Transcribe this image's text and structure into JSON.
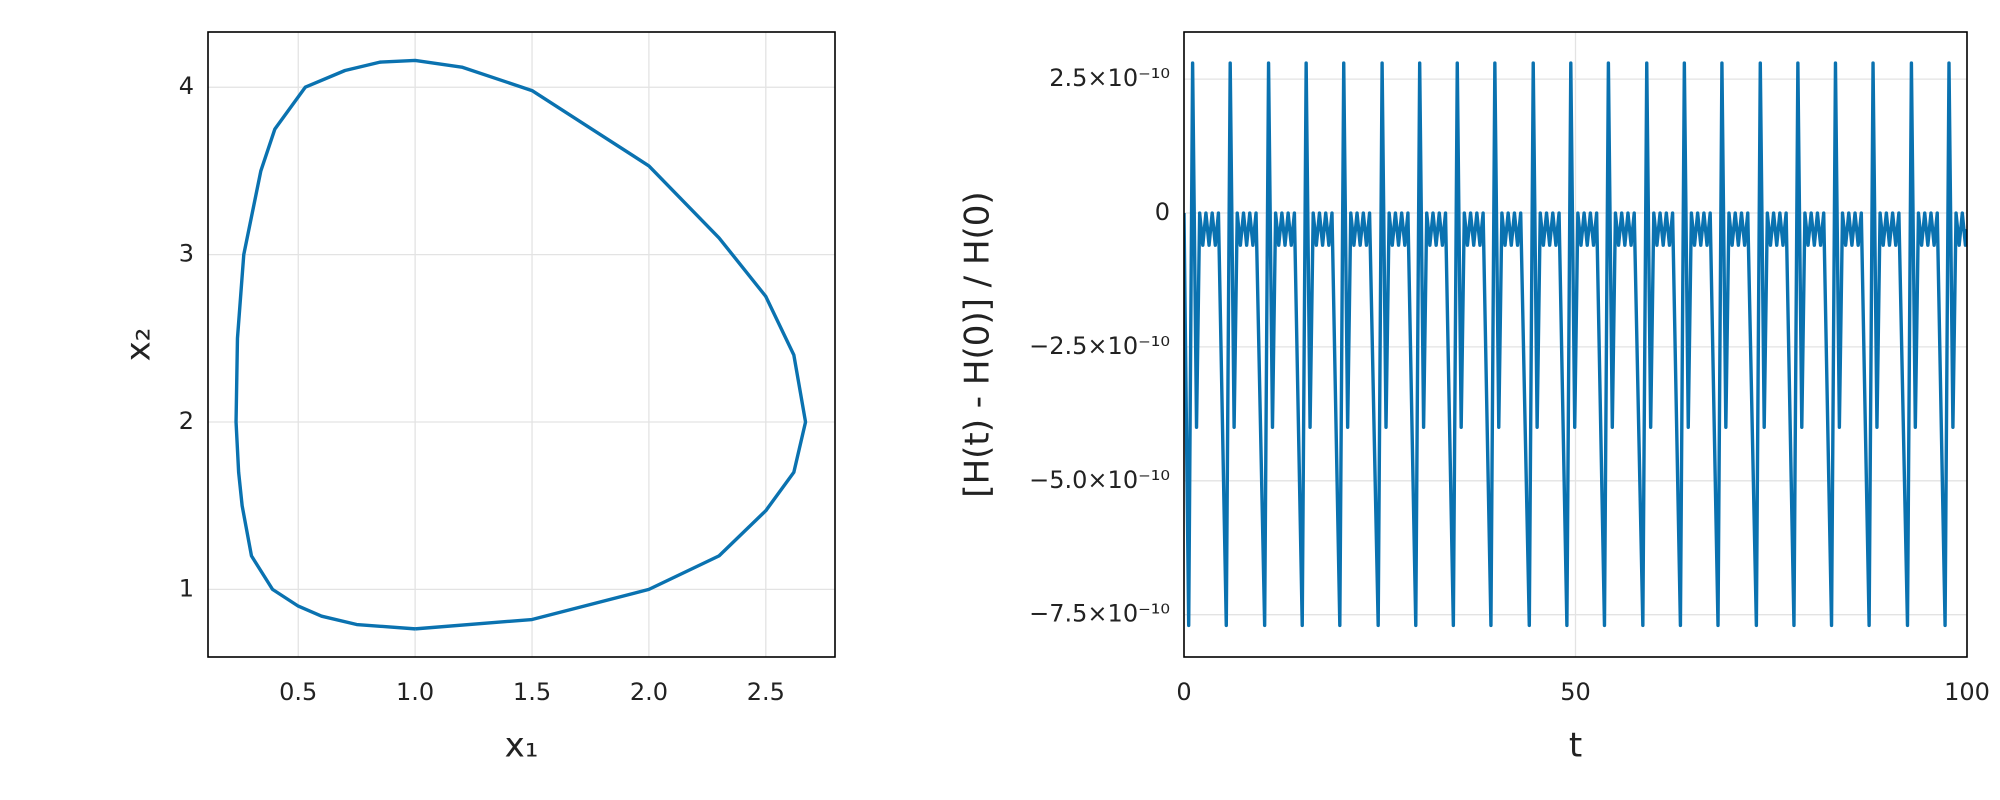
{
  "chart_data": [
    {
      "type": "line",
      "xlabel": "x₁",
      "ylabel": "x₂",
      "color": "#0a72b0",
      "grid": true,
      "x": [
        1.0,
        1.5,
        2.0,
        2.3,
        2.5,
        2.62,
        2.67,
        2.62,
        2.5,
        2.3,
        2.0,
        1.5,
        1.2,
        1.0,
        0.85,
        0.7,
        0.53,
        0.4,
        0.34,
        0.267,
        0.24,
        0.234,
        0.245,
        0.26,
        0.3,
        0.39,
        0.5,
        0.6,
        0.75,
        1.0
      ],
      "values": [
        0.764,
        0.82,
        1.0,
        1.2,
        1.47,
        1.7,
        2.0,
        2.4,
        2.75,
        3.1,
        3.53,
        3.98,
        4.12,
        4.16,
        4.15,
        4.1,
        4.0,
        3.75,
        3.5,
        3.0,
        2.5,
        2.0,
        1.7,
        1.5,
        1.2,
        1.0,
        0.9,
        0.84,
        0.79,
        0.764
      ],
      "xlim": [
        0.114,
        2.796
      ],
      "ylim": [
        0.596,
        4.33
      ],
      "xticks": [
        0.5,
        {
          "value": 1.0,
          "label": "1.0"
        },
        1.5,
        {
          "value": 2.0,
          "label": "2.0"
        },
        2.5
      ],
      "yticks": [
        1,
        2,
        3,
        4
      ]
    },
    {
      "type": "line",
      "xlabel": "t",
      "ylabel": "[H(t) - H(0)] / H(0)",
      "color": "#0a72b0",
      "grid": true,
      "x": [
        0,
        0.6,
        1.1,
        1.6,
        2.0,
        2.4,
        2.8,
        3.2,
        3.6,
        4.0,
        4.4,
        5.4,
        5.9,
        6.4,
        6.8,
        7.2,
        7.6,
        8.0,
        8.4,
        8.8,
        9.2,
        10.3,
        10.8,
        11.3,
        11.7,
        12.1,
        12.5,
        12.9,
        13.3,
        13.7,
        14.1,
        15.1,
        15.6,
        16.1,
        16.5,
        16.9,
        17.3,
        17.7,
        18.1,
        18.5,
        18.9,
        19.9,
        20.4,
        20.9,
        21.3,
        21.7,
        22.1,
        22.5,
        22.9,
        23.3,
        23.7,
        24.8,
        25.3,
        25.8,
        26.2,
        26.6,
        27.0,
        27.4,
        27.8,
        28.2,
        28.6,
        29.6,
        30.1,
        30.6,
        31.0,
        31.4,
        31.8,
        32.2,
        32.6,
        33.0,
        33.4,
        34.4,
        34.9,
        35.4,
        35.8,
        36.2,
        36.6,
        37.0,
        37.4,
        37.8,
        38.2,
        39.2,
        39.7,
        40.2,
        40.6,
        41.0,
        41.4,
        41.8,
        42.2,
        42.6,
        43.0,
        44.1,
        44.6,
        45.1,
        45.5,
        45.9,
        46.3,
        46.7,
        47.1,
        47.5,
        47.9,
        48.9,
        49.4,
        49.9,
        50.3,
        50.7,
        51.1,
        51.5,
        51.9,
        52.3,
        52.7,
        53.7,
        54.2,
        54.7,
        55.1,
        55.5,
        55.9,
        56.3,
        56.7,
        57.1,
        57.5,
        58.6,
        59.1,
        59.6,
        60.0,
        60.4,
        60.8,
        61.2,
        61.6,
        62.0,
        62.4,
        63.4,
        63.9,
        64.4,
        64.8,
        65.2,
        65.6,
        66.0,
        66.4,
        66.8,
        67.2,
        68.2,
        68.7,
        69.2,
        69.6,
        70.0,
        70.4,
        70.8,
        71.2,
        71.6,
        72.0,
        73.1,
        73.6,
        74.1,
        74.5,
        74.9,
        75.3,
        75.7,
        76.1,
        76.5,
        76.9,
        77.9,
        78.4,
        78.9,
        79.3,
        79.7,
        80.1,
        80.5,
        80.9,
        81.3,
        81.7,
        82.7,
        83.2,
        83.7,
        84.1,
        84.5,
        84.9,
        85.3,
        85.7,
        86.1,
        86.5,
        87.5,
        88.0,
        88.5,
        88.9,
        89.3,
        89.7,
        90.1,
        90.5,
        90.9,
        91.3,
        92.4,
        92.9,
        93.4,
        93.8,
        94.2,
        94.6,
        95.0,
        95.4,
        95.8,
        96.2,
        97.2,
        97.7,
        98.2,
        98.6,
        99.0,
        99.4,
        99.8,
        100
      ],
      "values": [
        0,
        -7.7e-10,
        2.8e-10,
        -4e-10,
        0,
        -6e-11,
        0,
        -6e-11,
        0,
        -6e-11,
        0,
        -7.7e-10,
        2.8e-10,
        -4e-10,
        0,
        -6e-11,
        0,
        -6e-11,
        0,
        -6e-11,
        0,
        -7.7e-10,
        2.8e-10,
        -4e-10,
        0,
        -6e-11,
        0,
        -6e-11,
        0,
        -6e-11,
        0,
        -7.7e-10,
        2.8e-10,
        -4e-10,
        0,
        -6e-11,
        0,
        -6e-11,
        0,
        -6e-11,
        0,
        -7.7e-10,
        2.8e-10,
        -4e-10,
        0,
        -6e-11,
        0,
        -6e-11,
        0,
        -6e-11,
        0,
        -7.7e-10,
        2.8e-10,
        -4e-10,
        0,
        -6e-11,
        0,
        -6e-11,
        0,
        -6e-11,
        0,
        -7.7e-10,
        2.8e-10,
        -4e-10,
        0,
        -6e-11,
        0,
        -6e-11,
        0,
        -6e-11,
        0,
        -7.7e-10,
        2.8e-10,
        -4e-10,
        0,
        -6e-11,
        0,
        -6e-11,
        0,
        -6e-11,
        0,
        -7.7e-10,
        2.8e-10,
        -4e-10,
        0,
        -6e-11,
        0,
        -6e-11,
        0,
        -6e-11,
        0,
        -7.7e-10,
        2.8e-10,
        -4e-10,
        0,
        -6e-11,
        0,
        -6e-11,
        0,
        -6e-11,
        0,
        -7.7e-10,
        2.8e-10,
        -4e-10,
        0,
        -6e-11,
        0,
        -6e-11,
        0,
        -6e-11,
        0,
        -7.7e-10,
        2.8e-10,
        -4e-10,
        0,
        -6e-11,
        0,
        -6e-11,
        0,
        -6e-11,
        0,
        -7.7e-10,
        2.8e-10,
        -4e-10,
        0,
        -6e-11,
        0,
        -6e-11,
        0,
        -6e-11,
        0,
        -7.7e-10,
        2.8e-10,
        -4e-10,
        0,
        -6e-11,
        0,
        -6e-11,
        0,
        -6e-11,
        0,
        -7.7e-10,
        2.8e-10,
        -4e-10,
        0,
        -6e-11,
        0,
        -6e-11,
        0,
        -6e-11,
        0,
        -7.7e-10,
        2.8e-10,
        -4e-10,
        0,
        -6e-11,
        0,
        -6e-11,
        0,
        -6e-11,
        0,
        -7.7e-10,
        2.8e-10,
        -4e-10,
        0,
        -6e-11,
        0,
        -6e-11,
        0,
        -6e-11,
        0,
        -7.7e-10,
        2.8e-10,
        -4e-10,
        0,
        -6e-11,
        0,
        -6e-11,
        0,
        -6e-11,
        0,
        -7.7e-10,
        2.8e-10,
        -4e-10,
        0,
        -6e-11,
        0,
        -6e-11,
        0,
        -6e-11,
        0,
        -7.7e-10,
        2.8e-10,
        -4e-10,
        0,
        -6e-11,
        0,
        -6e-11,
        0,
        -6e-11,
        0,
        -7.7e-10,
        2.8e-10,
        -4e-10,
        0,
        -6e-11,
        0,
        -6e-11,
        -3e-11
      ],
      "xlim": [
        0,
        100
      ],
      "ylim": [
        -8.29e-10,
        3.38e-10
      ],
      "xticks": [
        0,
        50,
        100
      ],
      "yticks": [
        {
          "value": -7.5e-10,
          "label": "−7.5×10⁻¹⁰"
        },
        {
          "value": -5e-10,
          "label": "−5.0×10⁻¹⁰"
        },
        {
          "value": -2.5e-10,
          "label": "−2.5×10⁻¹⁰"
        },
        0,
        {
          "value": 2.5e-10,
          "label": "2.5×10⁻¹⁰"
        }
      ]
    }
  ]
}
